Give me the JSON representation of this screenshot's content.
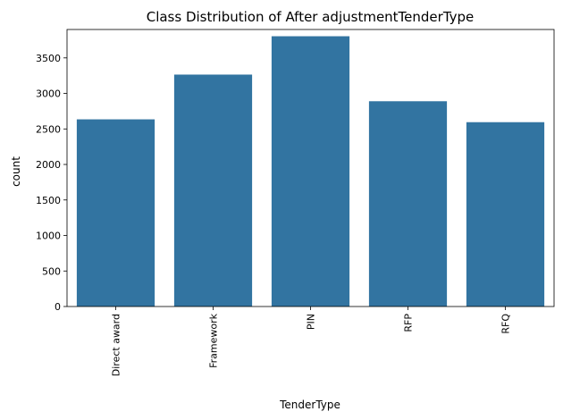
{
  "chart_data": {
    "type": "bar",
    "title": "Class Distribution of After adjustmentTenderType",
    "xlabel": "TenderType",
    "ylabel": "count",
    "categories": [
      "Direct award",
      "Framework",
      "PIN",
      "RFP",
      "RFQ"
    ],
    "values": [
      2635,
      3265,
      3805,
      2890,
      2595
    ],
    "ylim": [
      0,
      3900
    ],
    "yticks": [
      0,
      500,
      1000,
      1500,
      2000,
      2500,
      3000,
      3500
    ],
    "bar_color": "#3274a1",
    "grid": false,
    "legend": "none"
  }
}
